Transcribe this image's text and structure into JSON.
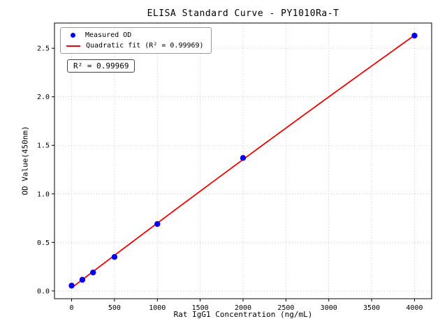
{
  "chart_data": {
    "type": "scatter",
    "title": "ELISA Standard Curve - PY1010Ra-T",
    "xlabel": "Rat IgG1 Concentration (ng/mL)",
    "ylabel": "OD Value(450nm)",
    "xlim": [
      -200,
      4200
    ],
    "ylim": [
      -0.08,
      2.76
    ],
    "grid": true,
    "xticks": {
      "values": [
        0,
        500,
        1000,
        1500,
        2000,
        2500,
        3000,
        3500,
        4000
      ],
      "labels": [
        "0",
        "500",
        "1000",
        "1500",
        "2000",
        "2500",
        "3000",
        "3500",
        "4000"
      ]
    },
    "yticks": {
      "values": [
        0.0,
        0.5,
        1.0,
        1.5,
        2.0,
        2.5
      ],
      "labels": [
        "0.0",
        "0.5",
        "1.0",
        "1.5",
        "2.0",
        "2.5"
      ]
    },
    "series": [
      {
        "name": "Measured OD",
        "type": "scatter",
        "color": "#0000ee",
        "x": [
          0,
          125,
          250,
          500,
          1000,
          2000,
          4000
        ],
        "y": [
          0.055,
          0.115,
          0.19,
          0.35,
          0.69,
          1.37,
          2.63
        ]
      },
      {
        "name": "Quadratic fit",
        "type": "line",
        "fit": "quadratic",
        "color": "#ee0000",
        "r_squared": 0.99969
      }
    ],
    "legend": {
      "position": "upper-left",
      "entries": [
        {
          "label": "Measured OD",
          "marker": "dot",
          "color": "#0000ee"
        },
        {
          "label": "Quadratic fit (R² = 0.99969)",
          "marker": "line",
          "color": "#ee0000"
        }
      ]
    },
    "annotation": "R² = 0.99969"
  }
}
